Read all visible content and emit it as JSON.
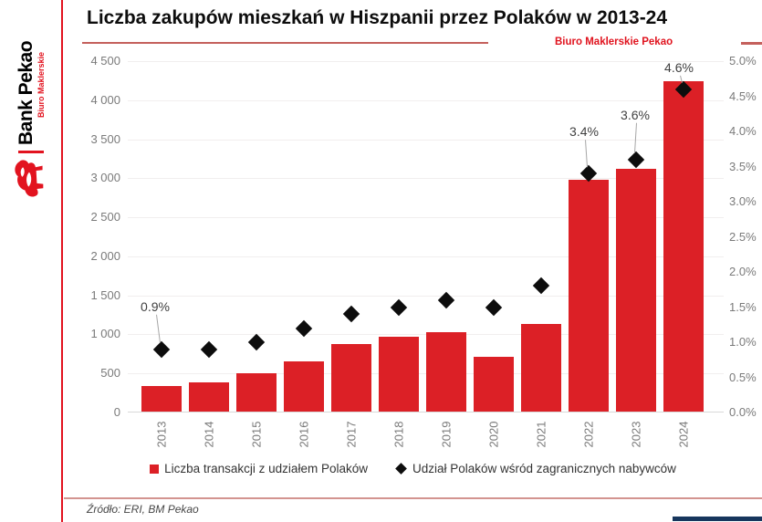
{
  "brand": {
    "logo_primary": "Bank Pekao",
    "logo_secondary": "Biuro Maklerskie",
    "accent_red": "#e2131f"
  },
  "header": {
    "title": "Liczba zakupów mieszkań w Hiszpanii przez Polaków w 2013-24",
    "watermark": "Biuro Maklerskie Pekao"
  },
  "legend": [
    {
      "marker": "square",
      "color": "#dc2026",
      "label": "Liczba transakcji z udziałem Polaków"
    },
    {
      "marker": "diamond",
      "color": "#0d0d0d",
      "label": "Udział Polaków wśród zagranicznych nabywców"
    }
  ],
  "footer": {
    "source": "Źródło: ERI, BM Pekao"
  },
  "chart_data": {
    "type": "bar",
    "subtype": "combo-bar-with-diamond-scatter",
    "title": "Liczba zakupów mieszkań w Hiszpanii przez Polaków w 2013-24",
    "categories": [
      "2013",
      "2014",
      "2015",
      "2016",
      "2017",
      "2018",
      "2019",
      "2020",
      "2021",
      "2022",
      "2023",
      "2024"
    ],
    "series": [
      {
        "name": "Liczba transakcji z udziałem Polaków",
        "type": "bar",
        "axis": "left",
        "color": "#dc2026",
        "values": [
          340,
          390,
          500,
          660,
          880,
          975,
          1030,
          710,
          1130,
          2980,
          3120,
          4240
        ]
      },
      {
        "name": "Udział Polaków wśród zagranicznych nabywców",
        "type": "scatter",
        "marker": "diamond",
        "axis": "right",
        "color": "#0d0d0d",
        "values": [
          0.9,
          0.9,
          1.0,
          1.2,
          1.4,
          1.5,
          1.6,
          1.5,
          1.8,
          3.4,
          3.6,
          4.6
        ]
      }
    ],
    "point_labels": [
      {
        "category": "2013",
        "text": "0.9%"
      },
      {
        "category": "2022",
        "text": "3.4%"
      },
      {
        "category": "2023",
        "text": "3.6%"
      },
      {
        "category": "2024",
        "text": "4.6%"
      }
    ],
    "left_axis": {
      "min": 0,
      "max": 4500,
      "step": 500,
      "ticks": [
        "4 500",
        "4 000",
        "3 500",
        "3 000",
        "2 500",
        "2 000",
        "1 500",
        "1 000",
        "500",
        "0"
      ]
    },
    "right_axis": {
      "min": 0,
      "max": 5,
      "step": 0.5,
      "ticks": [
        "5.0%",
        "4.5%",
        "4.0%",
        "3.5%",
        "3.0%",
        "2.5%",
        "2.0%",
        "1.5%",
        "1.0%",
        "0.5%",
        "0.0%"
      ]
    },
    "grid": true,
    "legend_position": "bottom"
  }
}
